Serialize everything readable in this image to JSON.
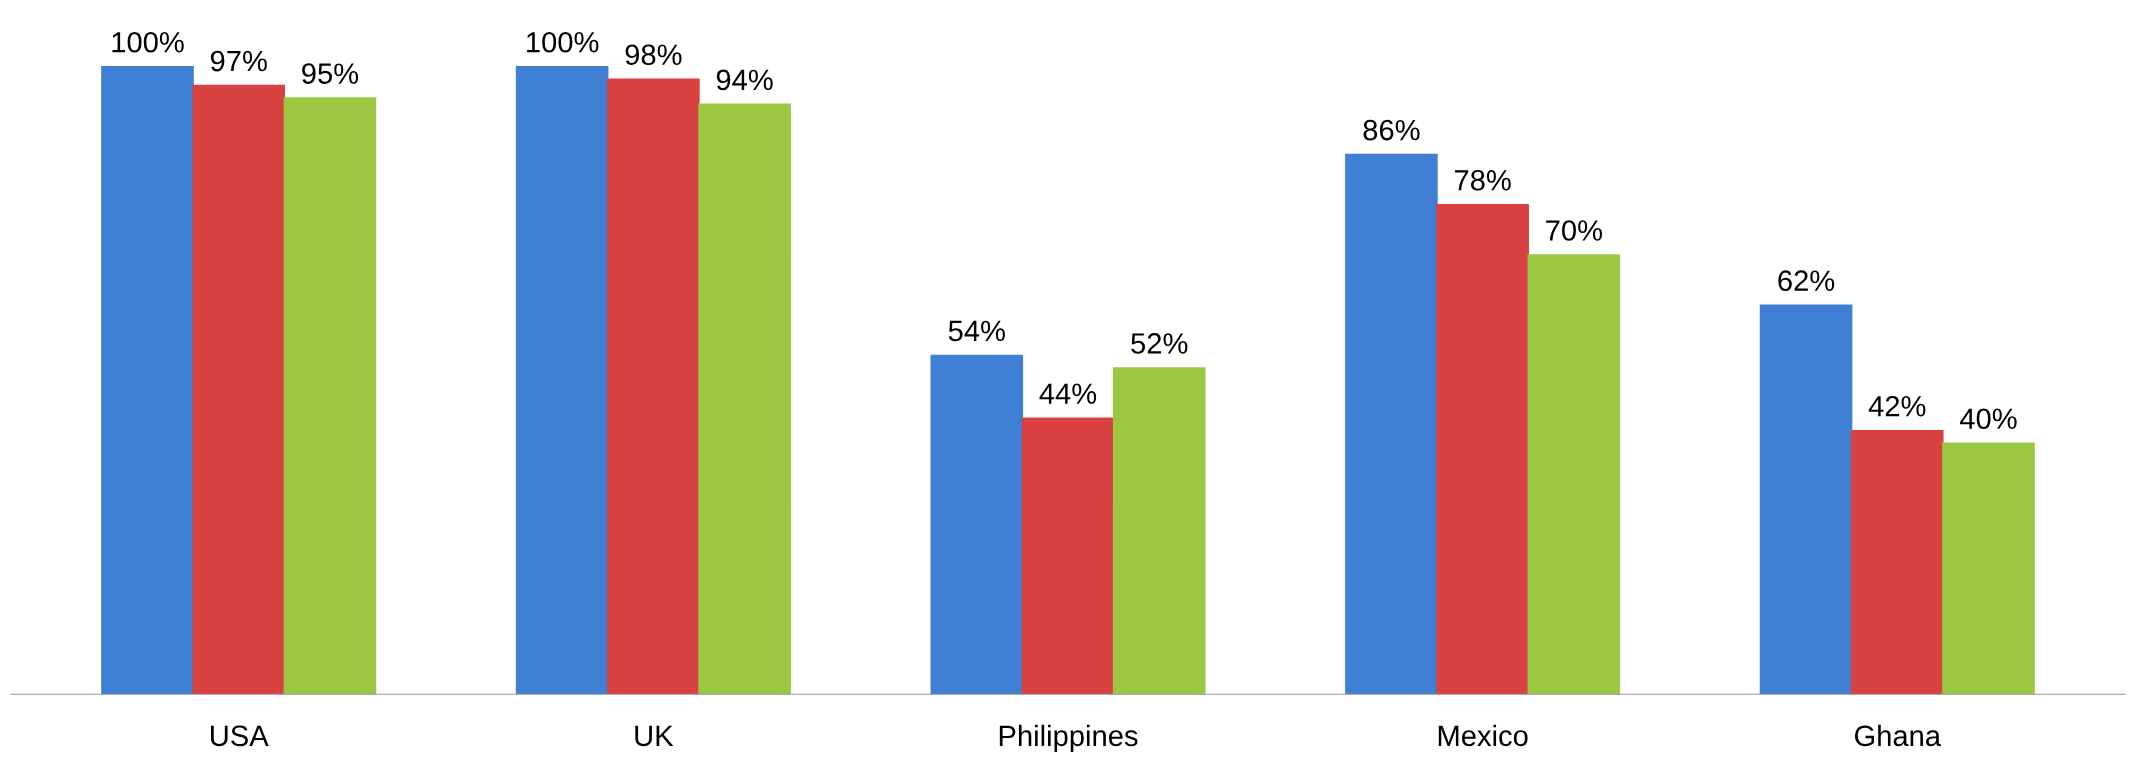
{
  "chart_data": {
    "type": "bar",
    "categories": [
      "USA",
      "UK",
      "Philippines",
      "Mexico",
      "Ghana"
    ],
    "series": [
      {
        "color": "#3f80d4",
        "values": [
          100,
          100,
          54,
          86,
          62
        ],
        "value_labels": [
          "100%",
          "100%",
          "54%",
          "86%",
          "62%"
        ]
      },
      {
        "color": "#d94141",
        "values": [
          97,
          98,
          44,
          78,
          42
        ],
        "value_labels": [
          "97%",
          "98%",
          "44%",
          "78%",
          "42%"
        ]
      },
      {
        "color": "#9bc743",
        "values": [
          95,
          94,
          52,
          70,
          40
        ],
        "value_labels": [
          "95%",
          "94%",
          "52%",
          "70%",
          "40%"
        ]
      }
    ],
    "tick_labels": "x",
    "grid": false,
    "legend": false
  }
}
